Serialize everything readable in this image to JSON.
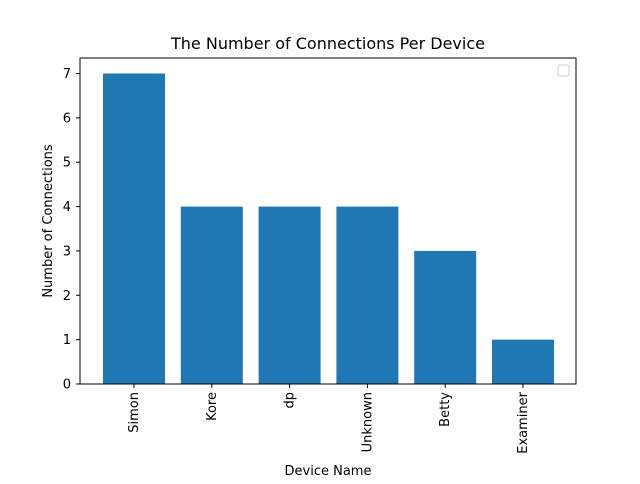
{
  "chart_data": {
    "type": "bar",
    "title": "The Number of Connections Per Device",
    "xlabel": "Device Name",
    "ylabel": "Number of Connections",
    "categories": [
      "Simon",
      "Kore",
      "dp",
      "Unknown",
      "Betty",
      "Examiner"
    ],
    "values": [
      7,
      4,
      4,
      4,
      3,
      1
    ],
    "ylim": [
      0,
      7.35
    ],
    "yticks": [
      0,
      1,
      2,
      3,
      4,
      5,
      6,
      7
    ],
    "grid": false,
    "legend": {
      "placement": "top-right",
      "entries": []
    },
    "bar_color": "#1f77b4"
  }
}
